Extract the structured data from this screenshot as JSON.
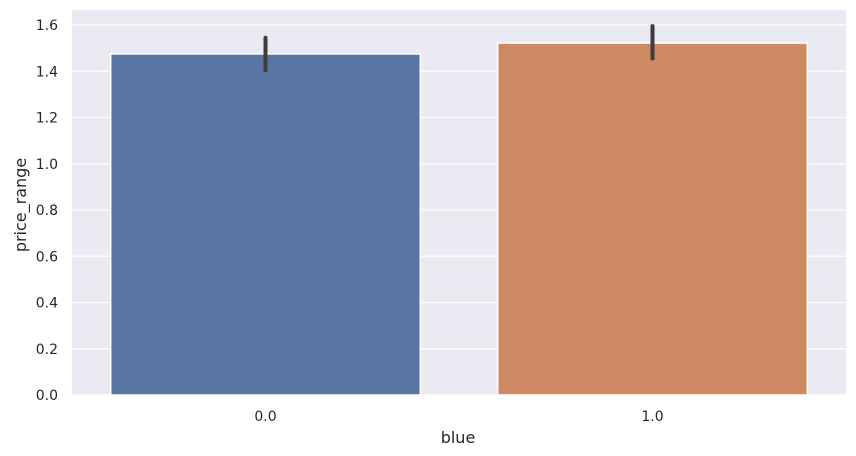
{
  "chart_data": {
    "type": "bar",
    "categories": [
      "0.0",
      "1.0"
    ],
    "values": [
      1.475,
      1.522
    ],
    "error_bars": [
      {
        "low": 1.405,
        "high": 1.545
      },
      {
        "low": 1.455,
        "high": 1.595
      }
    ],
    "xlabel": "blue",
    "ylabel": "price_range",
    "ylim": [
      0,
      1.665
    ],
    "yticks": [
      "0.0",
      "0.2",
      "0.4",
      "0.6",
      "0.8",
      "1.0",
      "1.2",
      "1.4",
      "1.6"
    ],
    "grid": true,
    "colors": [
      "#5975a4",
      "#cc8963"
    ],
    "background": "#eaeaf2",
    "errorbar_color": "#3d3d3d"
  }
}
